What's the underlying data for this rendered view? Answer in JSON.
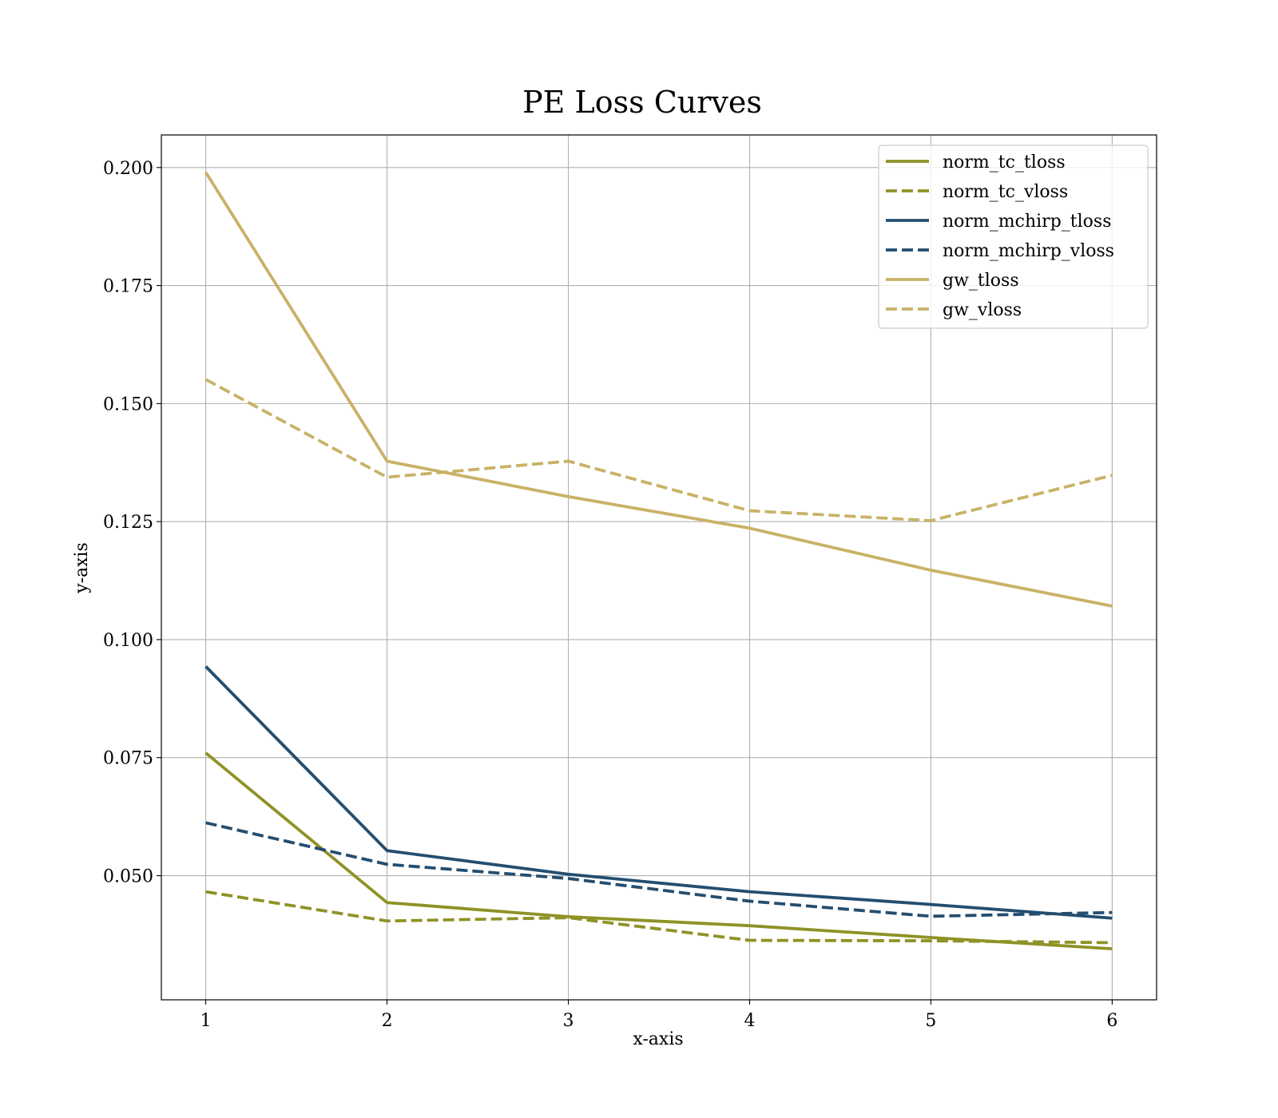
{
  "chart_data": {
    "type": "line",
    "title": "PE Loss Curves",
    "xlabel": "x-axis",
    "ylabel": "y-axis",
    "x": [
      1,
      2,
      3,
      4,
      5,
      6
    ],
    "xticks": [
      "1",
      "2",
      "3",
      "4",
      "5",
      "6"
    ],
    "yticks": [
      "0.050",
      "0.075",
      "0.100",
      "0.125",
      "0.150",
      "0.175",
      "0.200"
    ],
    "xlim": [
      0.755,
      6.245
    ],
    "ylim": [
      0.0237,
      0.2069
    ],
    "grid": true,
    "legend_position": "top-right",
    "series": [
      {
        "name": "norm_tc_tloss",
        "color": "#8f9226",
        "dash": "solid",
        "values": [
          0.076,
          0.0443,
          0.0413,
          0.0394,
          0.0369,
          0.0345
        ]
      },
      {
        "name": "norm_tc_vloss",
        "color": "#8f9226",
        "dash": "dashed",
        "values": [
          0.0466,
          0.0404,
          0.0411,
          0.0363,
          0.0362,
          0.0358
        ]
      },
      {
        "name": "norm_mchirp_tloss",
        "color": "#234e70",
        "dash": "solid",
        "values": [
          0.0943,
          0.0553,
          0.0503,
          0.0466,
          0.0439,
          0.041
        ]
      },
      {
        "name": "norm_mchirp_vloss",
        "color": "#234e70",
        "dash": "dashed",
        "values": [
          0.0612,
          0.0524,
          0.0494,
          0.0446,
          0.0414,
          0.0422
        ]
      },
      {
        "name": "gw_tloss",
        "color": "#c9b266",
        "dash": "solid",
        "values": [
          0.199,
          0.1378,
          0.1303,
          0.1236,
          0.1147,
          0.1071
        ]
      },
      {
        "name": "gw_vloss",
        "color": "#c9b266",
        "dash": "dashed",
        "values": [
          0.1551,
          0.1344,
          0.1378,
          0.1273,
          0.1252,
          0.1348
        ]
      }
    ]
  }
}
